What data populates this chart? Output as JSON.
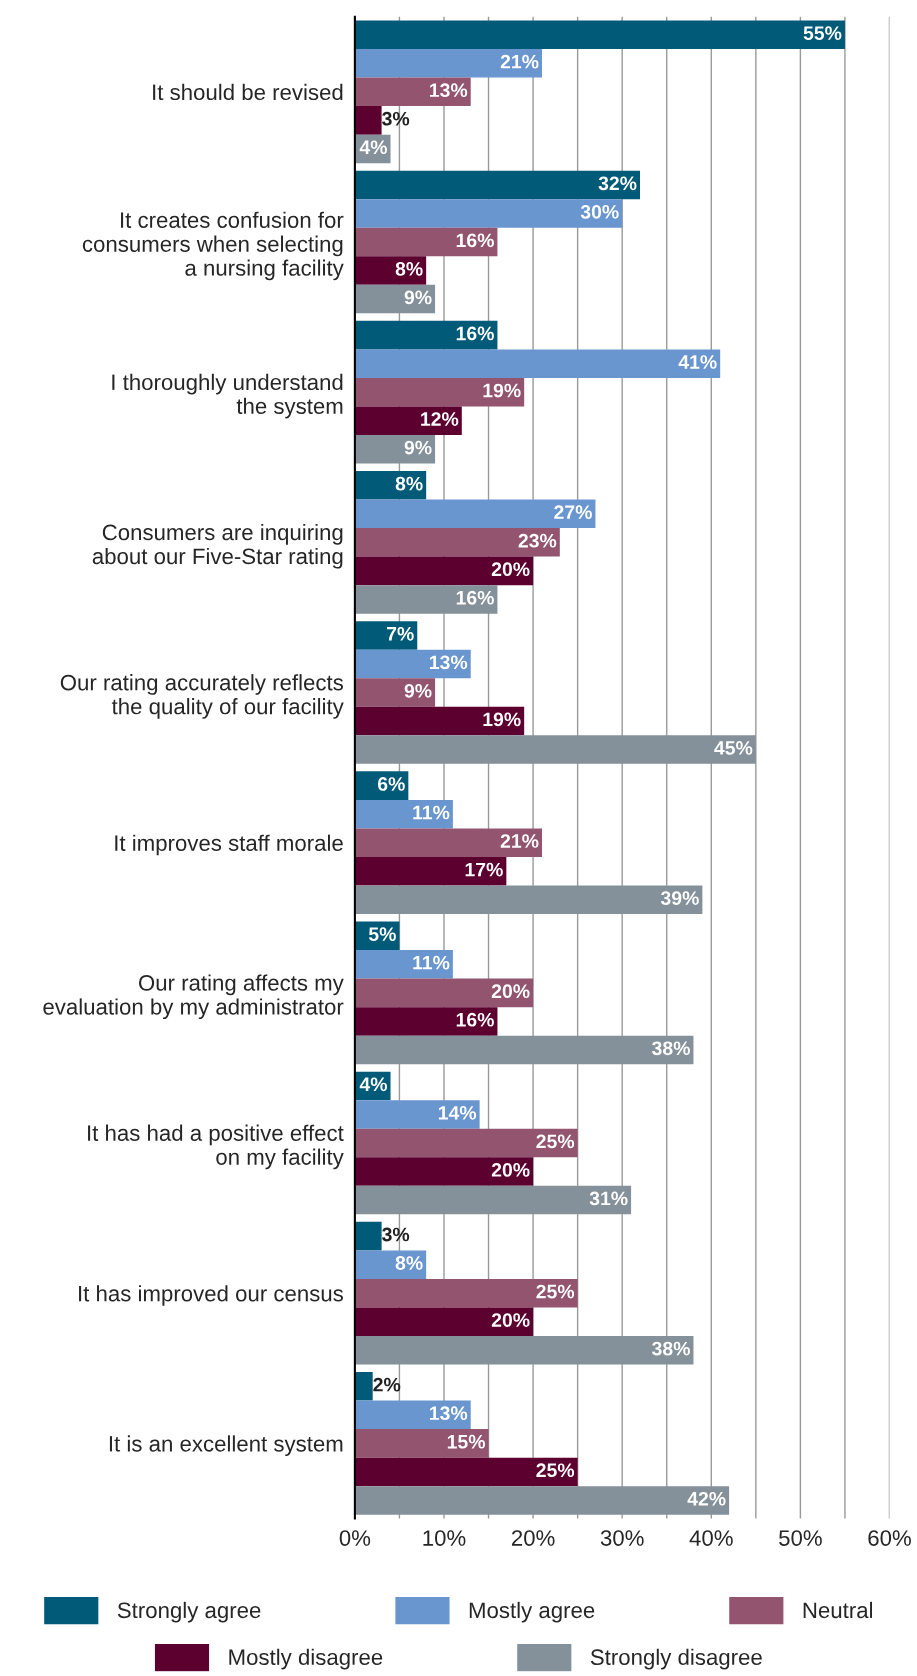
{
  "chart_data": {
    "type": "bar",
    "orientation": "horizontal",
    "categories": [
      "It should be revised",
      "It creates confusion for\nconsumers when selecting\na nursing facility",
      "I thoroughly understand\nthe system",
      "Consumers are inquiring\nabout our Five-Star rating",
      "Our rating accurately reflects\nthe quality of our facility",
      "It improves staff morale",
      "Our rating affects my\nevaluation by my administrator",
      "It has had a positive effect\non my facility",
      "It has improved our census",
      "It is an excellent system"
    ],
    "series": [
      {
        "name": "Strongly agree",
        "color": "#005a78",
        "values": [
          55,
          32,
          16,
          8,
          7,
          6,
          5,
          4,
          3,
          2
        ],
        "value_labels": [
          "55%",
          "32%",
          "16%",
          "8%",
          "7%",
          "6%",
          "5%",
          "4%",
          "3%",
          "2%"
        ]
      },
      {
        "name": "Mostly agree",
        "color": "#6a96d0",
        "values": [
          21,
          30,
          41,
          27,
          13,
          11,
          11,
          14,
          8,
          13
        ],
        "value_labels": [
          "21%",
          "30%",
          "41%",
          "27%",
          "13%",
          "11%",
          "11%",
          "14%",
          "8%",
          "13%"
        ]
      },
      {
        "name": "Neutral",
        "color": "#935470",
        "values": [
          13,
          16,
          19,
          23,
          9,
          21,
          20,
          25,
          25,
          15
        ],
        "value_labels": [
          "13%",
          "16%",
          "19%",
          "23%",
          "9%",
          "21%",
          "20%",
          "25%",
          "25%",
          "15%"
        ]
      },
      {
        "name": "Mostly disagree",
        "color": "#5c0030",
        "values": [
          3,
          8,
          12,
          20,
          19,
          17,
          16,
          20,
          20,
          25
        ],
        "value_labels": [
          "3%",
          "8%",
          "12%",
          "20%",
          "19%",
          "17%",
          "16%",
          "20%",
          "20%",
          "25%"
        ]
      },
      {
        "name": "Strongly disagree",
        "color": "#84919a",
        "values": [
          4,
          9,
          9,
          16,
          45,
          39,
          38,
          31,
          38,
          42
        ],
        "value_labels": [
          "4%",
          "9%",
          "9%",
          "16%",
          "45%",
          "39%",
          "38%",
          "31%",
          "38%",
          "42%"
        ]
      }
    ],
    "xlim": [
      0,
      60
    ],
    "xticks": [
      {
        "value": 0,
        "label": "0%"
      },
      {
        "value": 5,
        "label": null
      },
      {
        "value": 10,
        "label": "10%"
      },
      {
        "value": 15,
        "label": null
      },
      {
        "value": 20,
        "label": "20%"
      },
      {
        "value": 25,
        "label": null
      },
      {
        "value": 30,
        "label": "30%"
      },
      {
        "value": 35,
        "label": null
      },
      {
        "value": 40,
        "label": "40%"
      },
      {
        "value": 45,
        "label": null
      },
      {
        "value": 50,
        "label": "50%"
      },
      {
        "value": 55,
        "label": null
      },
      {
        "value": 60,
        "label": "60%"
      }
    ],
    "grid": "x",
    "legend": "bottom"
  }
}
